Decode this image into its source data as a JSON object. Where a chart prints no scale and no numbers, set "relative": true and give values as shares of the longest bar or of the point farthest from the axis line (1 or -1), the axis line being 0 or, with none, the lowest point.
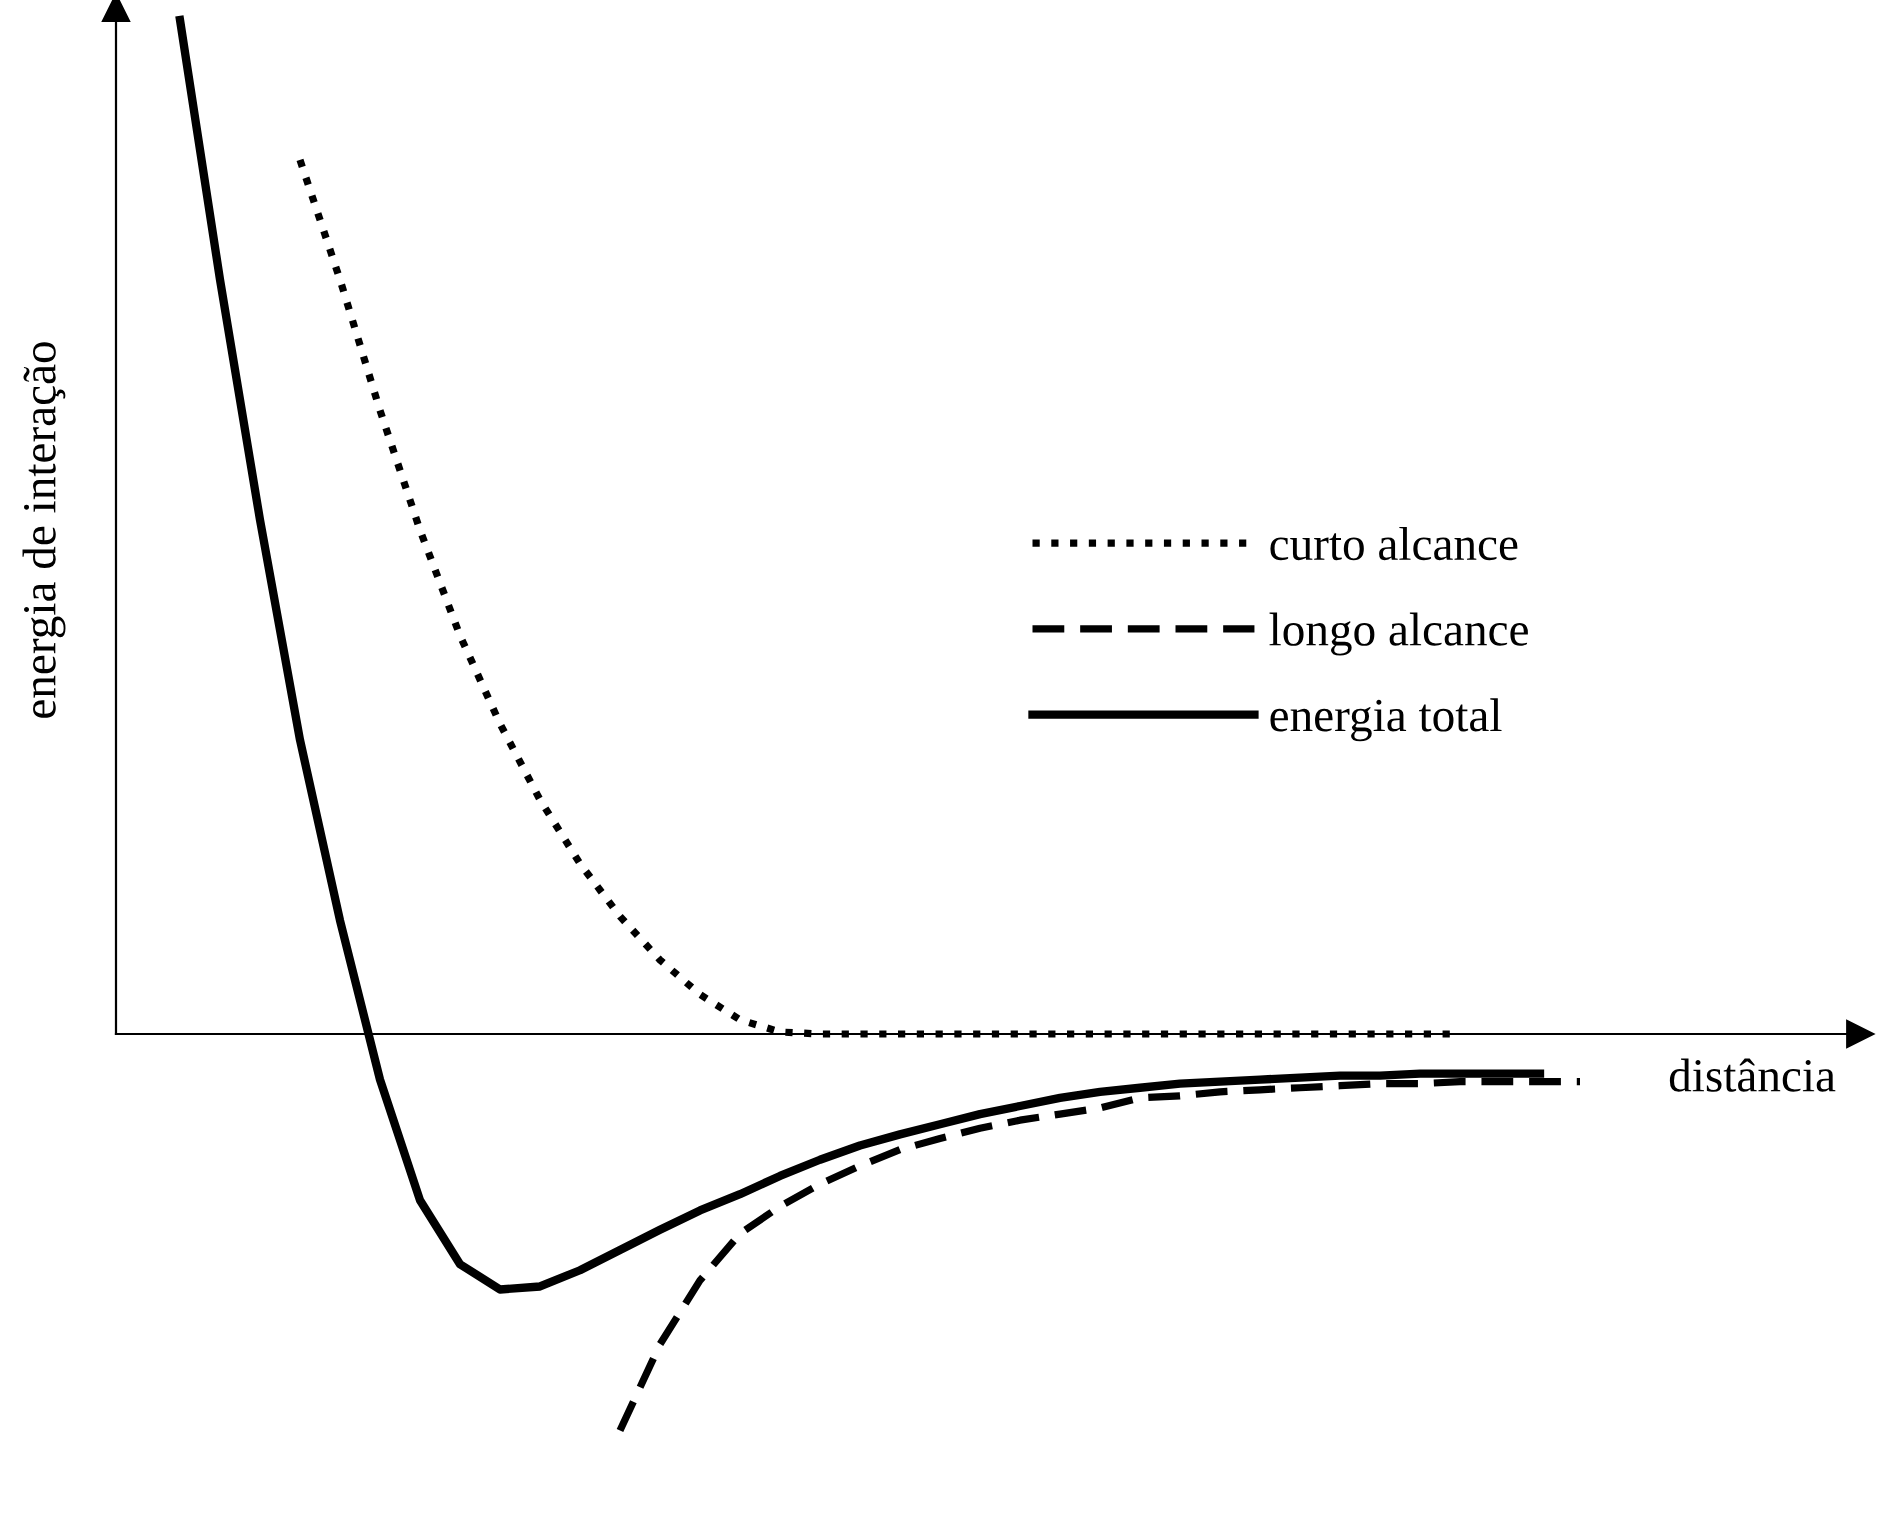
{
  "chart_data": {
    "type": "line",
    "relative": true,
    "xlabel": "distância",
    "ylabel": "energia de interação",
    "legend": "right",
    "marker": "none",
    "categories": [
      null,
      null,
      null,
      null,
      null,
      null,
      null,
      null,
      null,
      null,
      null,
      null,
      null,
      null,
      null,
      null,
      null,
      null,
      null,
      null,
      null,
      null,
      null,
      null,
      null,
      null,
      null,
      null,
      null,
      null,
      null,
      null,
      null,
      null,
      null,
      null
    ],
    "series": [
      {
        "name": "curto alcance",
        "color": "#000000",
        "line_style": "dotted",
        "values": [
          null,
          null,
          null,
          0.862,
          0.744,
          0.615,
          0.497,
          0.393,
          0.306,
          0.231,
          0.168,
          0.116,
          0.073,
          0.039,
          0.014,
          0.002,
          0,
          0,
          0,
          0,
          0,
          0,
          0,
          0,
          0,
          0,
          0,
          0,
          0,
          0,
          0,
          0,
          0,
          null,
          null,
          null
        ]
      },
      {
        "name": "longo alcance",
        "color": "#000000",
        "line_style": "dashed",
        "values": [
          null,
          null,
          null,
          null,
          null,
          null,
          null,
          null,
          null,
          null,
          null,
          -0.391,
          -0.306,
          -0.243,
          -0.197,
          -0.17,
          -0.148,
          -0.13,
          -0.114,
          -0.103,
          -0.093,
          -0.085,
          -0.079,
          -0.073,
          -0.063,
          -0.061,
          -0.057,
          -0.055,
          -0.053,
          -0.051,
          -0.049,
          -0.049,
          -0.047,
          -0.047,
          -0.047,
          -0.047
        ]
      },
      {
        "name": "energia total",
        "color": "#000000",
        "line_style": "solid",
        "values": [
          1,
          0.744,
          0.507,
          0.29,
          0.112,
          -0.045,
          -0.164,
          -0.227,
          -0.252,
          -0.249,
          -0.233,
          -0.213,
          -0.193,
          -0.174,
          -0.158,
          -0.14,
          -0.124,
          -0.11,
          -0.099,
          -0.089,
          -0.079,
          -0.071,
          -0.063,
          -0.057,
          -0.053,
          -0.049,
          -0.047,
          -0.045,
          -0.043,
          -0.041,
          -0.041,
          -0.039,
          -0.039,
          -0.039,
          -0.039,
          null
        ]
      }
    ]
  }
}
